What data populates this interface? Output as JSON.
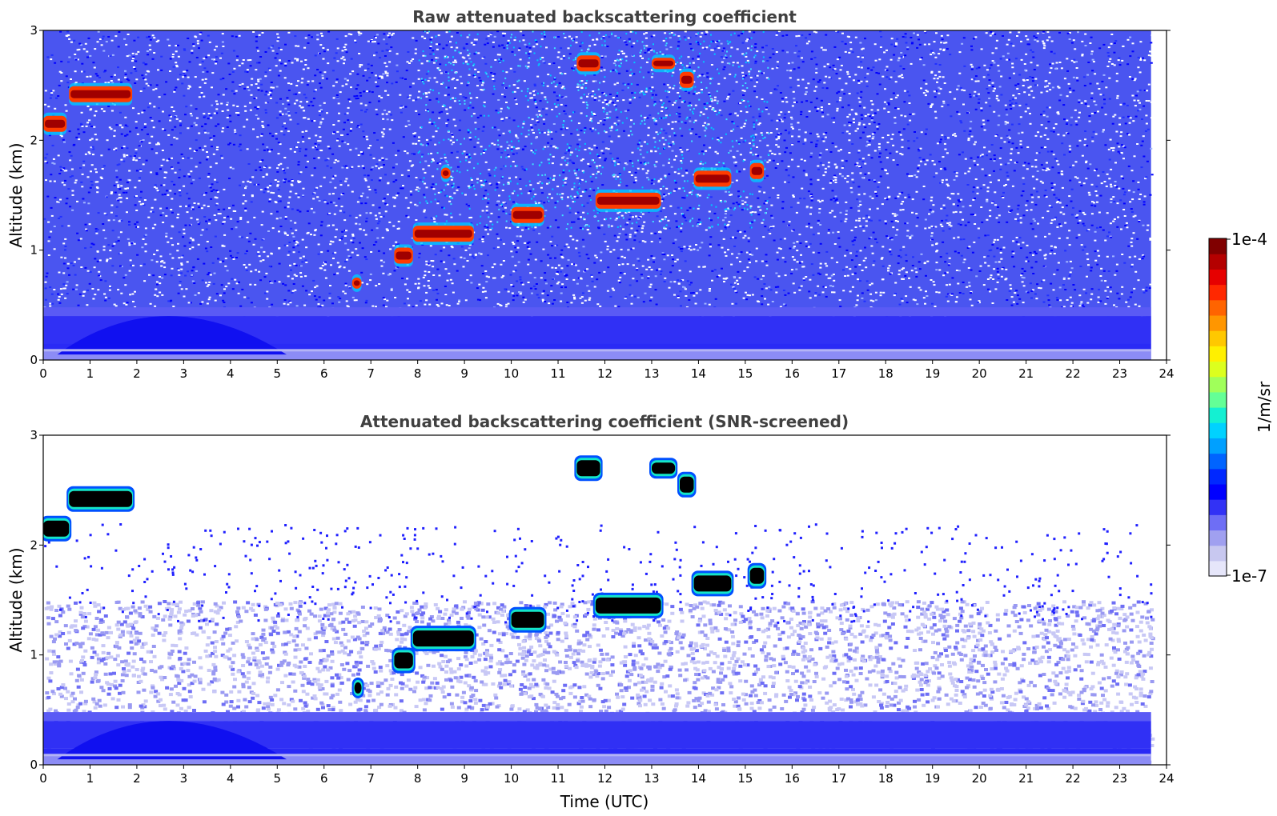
{
  "chart_data": [
    {
      "type": "heatmap",
      "title": "Raw attenuated backscattering coefficient",
      "xlabel": "",
      "ylabel": "Altitude (km)",
      "xlim": [
        0,
        24
      ],
      "ylim": [
        0,
        3
      ],
      "xticks": [
        "0",
        "1",
        "2",
        "3",
        "4",
        "5",
        "6",
        "7",
        "8",
        "9",
        "10",
        "11",
        "12",
        "13",
        "14",
        "15",
        "16",
        "17",
        "18",
        "19",
        "20",
        "21",
        "22",
        "23",
        "24"
      ],
      "yticks": [
        "0",
        "1",
        "2",
        "3"
      ],
      "data_end_time": 23.67,
      "variant": "raw",
      "cloud_layers": [
        {
          "t_start": 0.0,
          "t_end": 0.5,
          "alt_km": 2.15,
          "intensity": "high"
        },
        {
          "t_start": 0.55,
          "t_end": 1.9,
          "alt_km": 2.42,
          "intensity": "high"
        },
        {
          "t_start": 6.6,
          "t_end": 6.8,
          "alt_km": 0.7,
          "intensity": "medium"
        },
        {
          "t_start": 7.5,
          "t_end": 7.9,
          "alt_km": 0.95,
          "intensity": "high"
        },
        {
          "t_start": 7.9,
          "t_end": 9.2,
          "alt_km": 1.15,
          "intensity": "high"
        },
        {
          "t_start": 8.5,
          "t_end": 8.7,
          "alt_km": 1.7,
          "intensity": "medium"
        },
        {
          "t_start": 10.0,
          "t_end": 10.7,
          "alt_km": 1.32,
          "intensity": "high"
        },
        {
          "t_start": 11.4,
          "t_end": 11.9,
          "alt_km": 2.7,
          "intensity": "high"
        },
        {
          "t_start": 11.8,
          "t_end": 13.2,
          "alt_km": 1.45,
          "intensity": "high"
        },
        {
          "t_start": 13.0,
          "t_end": 13.5,
          "alt_km": 2.7,
          "intensity": "medium"
        },
        {
          "t_start": 13.6,
          "t_end": 13.9,
          "alt_km": 2.55,
          "intensity": "high"
        },
        {
          "t_start": 13.9,
          "t_end": 14.7,
          "alt_km": 1.65,
          "intensity": "high"
        },
        {
          "t_start": 15.1,
          "t_end": 15.4,
          "alt_km": 1.72,
          "intensity": "high"
        }
      ],
      "boundary_layer_top_km": 0.45
    },
    {
      "type": "heatmap",
      "title": "Attenuated backscattering coefficient (SNR-screened)",
      "xlabel": "Time (UTC)",
      "ylabel": "Altitude (km)",
      "xlim": [
        0,
        24
      ],
      "ylim": [
        0,
        3
      ],
      "xticks": [
        "0",
        "1",
        "2",
        "3",
        "4",
        "5",
        "6",
        "7",
        "8",
        "9",
        "10",
        "11",
        "12",
        "13",
        "14",
        "15",
        "16",
        "17",
        "18",
        "19",
        "20",
        "21",
        "22",
        "23",
        "24"
      ],
      "yticks": [
        "0",
        "1",
        "2",
        "3"
      ],
      "data_end_time": 23.67,
      "variant": "screened",
      "cloud_layers": [
        {
          "t_start": 0.0,
          "t_end": 0.55,
          "alt_km": 2.15,
          "intensity": "high"
        },
        {
          "t_start": 0.55,
          "t_end": 1.9,
          "alt_km": 2.42,
          "intensity": "high"
        },
        {
          "t_start": 6.65,
          "t_end": 6.8,
          "alt_km": 0.7,
          "intensity": "medium"
        },
        {
          "t_start": 7.5,
          "t_end": 7.9,
          "alt_km": 0.95,
          "intensity": "high"
        },
        {
          "t_start": 7.9,
          "t_end": 9.2,
          "alt_km": 1.15,
          "intensity": "high"
        },
        {
          "t_start": 10.0,
          "t_end": 10.7,
          "alt_km": 1.32,
          "intensity": "high"
        },
        {
          "t_start": 11.4,
          "t_end": 11.9,
          "alt_km": 2.7,
          "intensity": "high"
        },
        {
          "t_start": 11.8,
          "t_end": 13.2,
          "alt_km": 1.45,
          "intensity": "high"
        },
        {
          "t_start": 13.0,
          "t_end": 13.5,
          "alt_km": 2.7,
          "intensity": "medium"
        },
        {
          "t_start": 13.6,
          "t_end": 13.9,
          "alt_km": 2.55,
          "intensity": "high"
        },
        {
          "t_start": 13.9,
          "t_end": 14.7,
          "alt_km": 1.65,
          "intensity": "high"
        },
        {
          "t_start": 15.1,
          "t_end": 15.4,
          "alt_km": 1.72,
          "intensity": "high"
        }
      ],
      "boundary_layer_top_km": 1.5
    }
  ],
  "colorbar": {
    "label": "1/m/sr",
    "tick_top": "1e-4",
    "tick_bottom": "1e-7",
    "colormap": [
      "#e6e6fa",
      "#c8c8f0",
      "#a0a0f0",
      "#6e6ef5",
      "#3232f5",
      "#0000ff",
      "#0028ff",
      "#0064ff",
      "#00a0ff",
      "#00d2ff",
      "#14f0d2",
      "#64ff96",
      "#a0ff5a",
      "#dcff1e",
      "#fff000",
      "#ffc800",
      "#ff9600",
      "#ff6400",
      "#ff2800",
      "#e60000",
      "#b40000",
      "#800000"
    ]
  }
}
